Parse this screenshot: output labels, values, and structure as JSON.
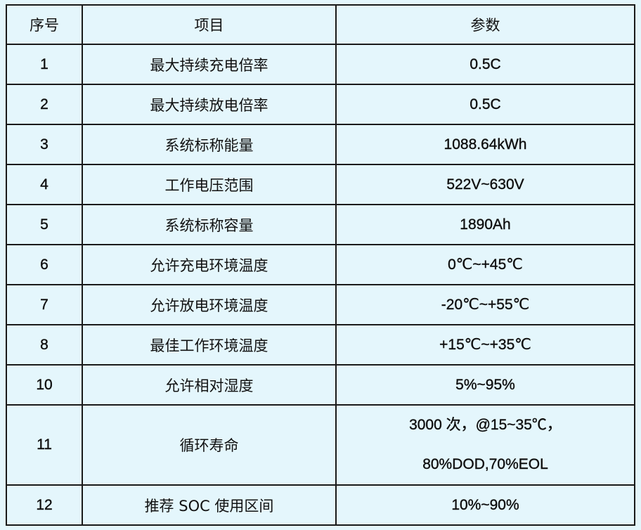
{
  "header": {
    "col_no": "序号",
    "col_item": "项目",
    "col_param": "参数"
  },
  "rows": [
    {
      "no": "1",
      "item": "最大持续充电倍率",
      "value": "0.5C"
    },
    {
      "no": "2",
      "item": "最大持续放电倍率",
      "value": "0.5C"
    },
    {
      "no": "3",
      "item": "系统标称能量",
      "value": "1088.64kWh"
    },
    {
      "no": "4",
      "item": "工作电压范围",
      "value": "522V~630V"
    },
    {
      "no": "5",
      "item": "系统标称容量",
      "value": "1890Ah"
    },
    {
      "no": "6",
      "item": "允许充电环境温度",
      "value": "0℃~+45℃"
    },
    {
      "no": "7",
      "item": "允许放电环境温度",
      "value": "-20℃~+55℃"
    },
    {
      "no": "8",
      "item": "最佳工作环境温度",
      "value": "+15℃~+35℃"
    },
    {
      "no": "10",
      "item": "允许相对湿度",
      "value": "5%~95%"
    },
    {
      "no": "11",
      "item": "循环寿命",
      "value_lines": [
        "3000 次，@15~35℃，",
        "80%DOD,70%EOL"
      ]
    },
    {
      "no": "12",
      "item": "推荐 SOC 使用区间",
      "value": "10%~90%"
    }
  ]
}
